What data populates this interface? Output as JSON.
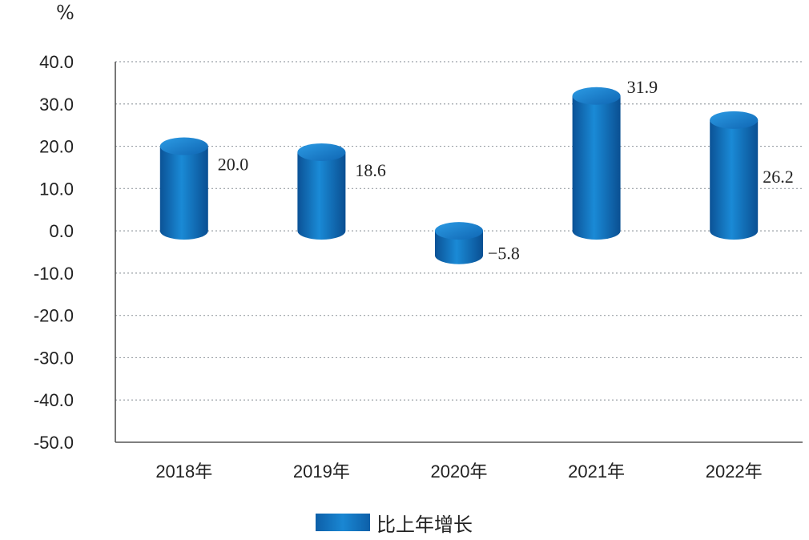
{
  "unit_label": "%",
  "legend": {
    "label": "比上年增长",
    "color": "#1a87d3"
  },
  "chart_data": {
    "type": "bar",
    "categories": [
      "2018年",
      "2019年",
      "2020年",
      "2021年",
      "2022年"
    ],
    "series": [
      {
        "name": "比上年增长",
        "values": [
          20.0,
          18.6,
          -5.8,
          31.9,
          26.2
        ],
        "color": "#1a87d3"
      }
    ],
    "value_labels": [
      "20.0",
      "18.6",
      "−5.8",
      "31.9",
      "26.2"
    ],
    "yticks": [
      "40.0",
      "30.0",
      "20.0",
      "10.0",
      "0.0",
      "-10.0",
      "-20.0",
      "-30.0",
      "-40.0",
      "-50.0"
    ],
    "ylim": [
      -50,
      40
    ],
    "grid": true
  }
}
